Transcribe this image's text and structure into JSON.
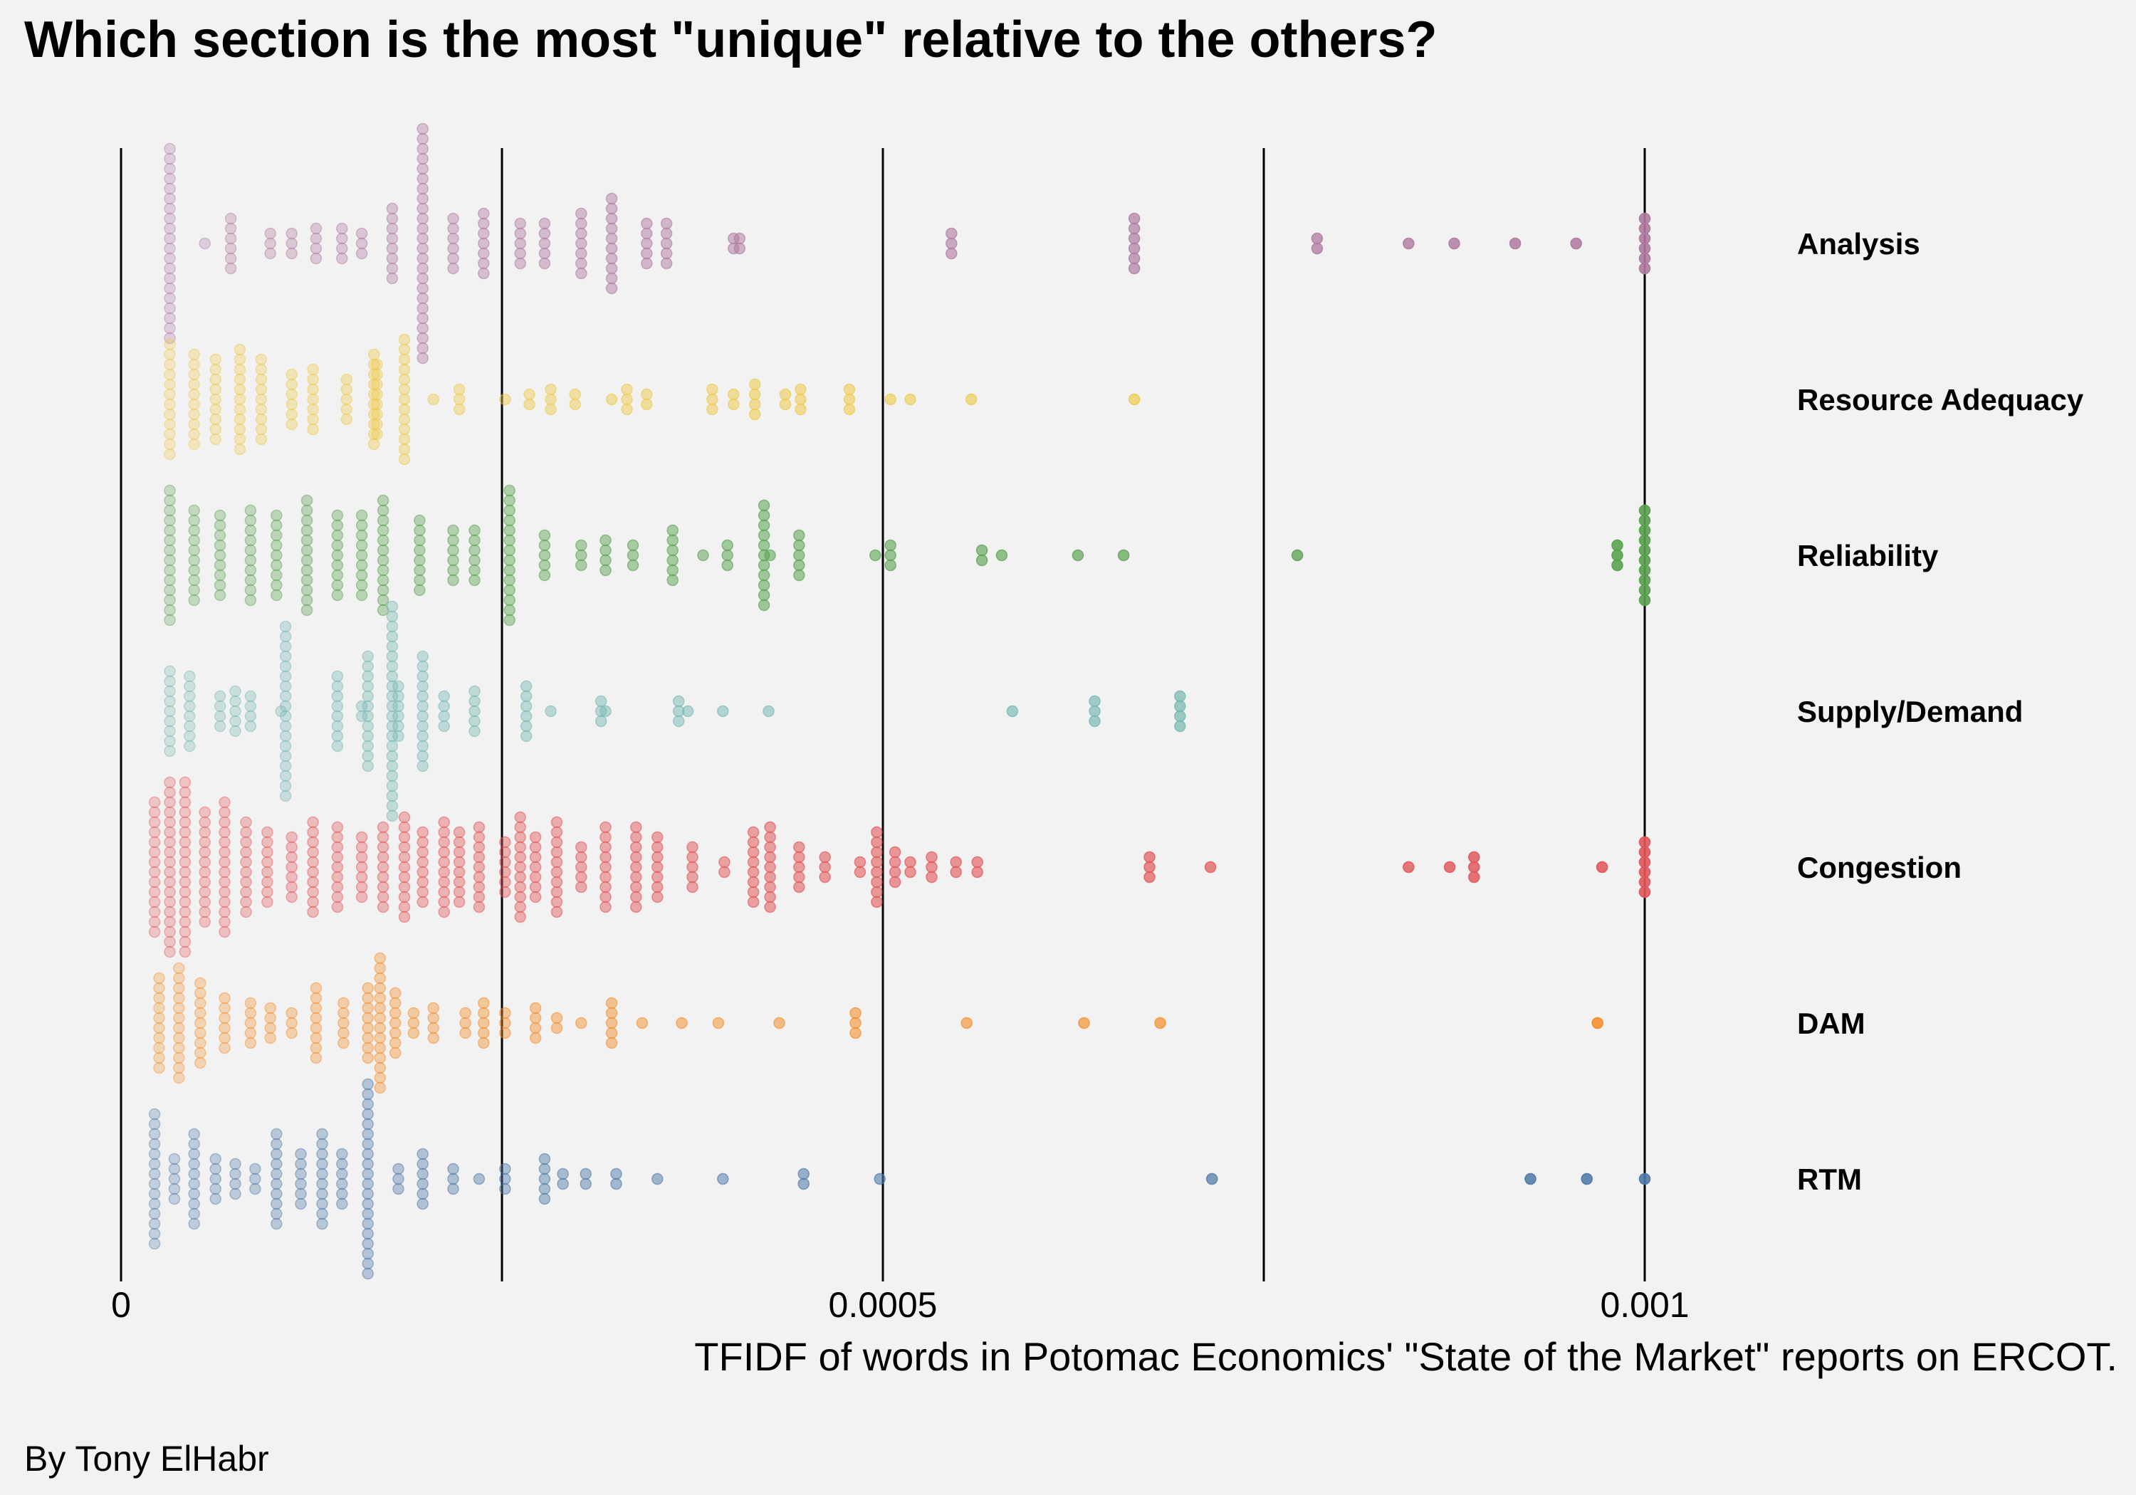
{
  "chart_data": {
    "type": "scatter",
    "title": "Which section is the most \"unique\" relative to the others?",
    "xlabel": "TFIDF of words in Potomac Economics' \"State of the Market\" reports on ERCOT.",
    "ylabel": "",
    "caption": "By Tony ElHabr",
    "xlim": [
      0,
      0.00129
    ],
    "x_ticks": [
      0,
      0.0005,
      0.001
    ],
    "x_tick_labels": [
      "0",
      "0.0005",
      "0.001"
    ],
    "grid_x": [
      0,
      0.00025,
      0.0005,
      0.00075,
      0.001
    ],
    "grid": true,
    "legend": "none",
    "series": [
      {
        "name": "Analysis",
        "color": "#b07aa1",
        "clusters": [
          [
            3.2e-05,
            20
          ],
          [
            5.5e-05,
            1
          ],
          [
            7.2e-05,
            6
          ],
          [
            9.8e-05,
            3
          ],
          [
            0.000112,
            3
          ],
          [
            0.000128,
            4
          ],
          [
            0.000145,
            4
          ],
          [
            0.000158,
            3
          ],
          [
            0.000178,
            8
          ],
          [
            0.000198,
            24
          ],
          [
            0.000218,
            6
          ],
          [
            0.000238,
            7
          ],
          [
            0.000262,
            5
          ],
          [
            0.000278,
            5
          ],
          [
            0.000302,
            7
          ],
          [
            0.000322,
            10
          ],
          [
            0.000345,
            5
          ],
          [
            0.000358,
            5
          ],
          [
            0.000402,
            2
          ],
          [
            0.000406,
            2
          ],
          [
            0.000545,
            3
          ],
          [
            0.000665,
            6
          ],
          [
            0.000785,
            2
          ],
          [
            0.000845,
            1
          ],
          [
            0.000875,
            1
          ],
          [
            0.000915,
            1
          ],
          [
            0.000955,
            1
          ],
          [
            0.001,
            6
          ]
        ]
      },
      {
        "name": "Resource Adequacy",
        "color": "#edc948",
        "clusters": [
          [
            3.2e-05,
            12
          ],
          [
            4.8e-05,
            10
          ],
          [
            6.2e-05,
            9
          ],
          [
            7.8e-05,
            11
          ],
          [
            9.2e-05,
            9
          ],
          [
            0.000112,
            6
          ],
          [
            0.000126,
            7
          ],
          [
            0.000148,
            5
          ],
          [
            0.000166,
            10
          ],
          [
            0.000168,
            8
          ],
          [
            0.000186,
            13
          ],
          [
            0.000205,
            1
          ],
          [
            0.000222,
            3
          ],
          [
            0.000252,
            1
          ],
          [
            0.000268,
            2
          ],
          [
            0.000282,
            3
          ],
          [
            0.000298,
            2
          ],
          [
            0.000322,
            1
          ],
          [
            0.000332,
            3
          ],
          [
            0.000345,
            2
          ],
          [
            0.000388,
            3
          ],
          [
            0.000402,
            2
          ],
          [
            0.000416,
            4
          ],
          [
            0.000436,
            2
          ],
          [
            0.000446,
            3
          ],
          [
            0.000478,
            3
          ],
          [
            0.000505,
            1
          ],
          [
            0.000518,
            1
          ],
          [
            0.000558,
            1
          ],
          [
            0.000665,
            1
          ]
        ]
      },
      {
        "name": "Reliability",
        "color": "#59a14f",
        "clusters": [
          [
            3.2e-05,
            14
          ],
          [
            4.8e-05,
            10
          ],
          [
            6.5e-05,
            9
          ],
          [
            8.5e-05,
            10
          ],
          [
            0.000102,
            9
          ],
          [
            0.000122,
            12
          ],
          [
            0.000142,
            9
          ],
          [
            0.000158,
            9
          ],
          [
            0.000172,
            12
          ],
          [
            0.000196,
            8
          ],
          [
            0.000218,
            6
          ],
          [
            0.000232,
            6
          ],
          [
            0.000255,
            14
          ],
          [
            0.000278,
            5
          ],
          [
            0.000302,
            3
          ],
          [
            0.000318,
            4
          ],
          [
            0.000336,
            3
          ],
          [
            0.000362,
            6
          ],
          [
            0.000382,
            1
          ],
          [
            0.000398,
            3
          ],
          [
            0.000422,
            11
          ],
          [
            0.000426,
            1
          ],
          [
            0.000445,
            5
          ],
          [
            0.000495,
            1
          ],
          [
            0.000505,
            3
          ],
          [
            0.000565,
            2
          ],
          [
            0.000578,
            1
          ],
          [
            0.000628,
            1
          ],
          [
            0.000658,
            1
          ],
          [
            0.000772,
            1
          ],
          [
            0.000982,
            3
          ],
          [
            0.001,
            10
          ]
        ]
      },
      {
        "name": "Supply/Demand",
        "color": "#76b7b2",
        "clusters": [
          [
            3.2e-05,
            9
          ],
          [
            4.5e-05,
            8
          ],
          [
            6.5e-05,
            4
          ],
          [
            7.5e-05,
            5
          ],
          [
            8.5e-05,
            4
          ],
          [
            0.000105,
            1
          ],
          [
            0.000108,
            18
          ],
          [
            0.000142,
            8
          ],
          [
            0.000158,
            2
          ],
          [
            0.000162,
            12
          ],
          [
            0.000178,
            22
          ],
          [
            0.000182,
            6
          ],
          [
            0.000198,
            12
          ],
          [
            0.000212,
            4
          ],
          [
            0.000232,
            5
          ],
          [
            0.000266,
            6
          ],
          [
            0.000282,
            1
          ],
          [
            0.000315,
            3
          ],
          [
            0.000318,
            1
          ],
          [
            0.000366,
            3
          ],
          [
            0.000372,
            1
          ],
          [
            0.000395,
            1
          ],
          [
            0.000425,
            1
          ],
          [
            0.000585,
            1
          ],
          [
            0.000639,
            3
          ],
          [
            0.000695,
            4
          ]
        ]
      },
      {
        "name": "Congestion",
        "color": "#e15759",
        "clusters": [
          [
            2.2e-05,
            14
          ],
          [
            3.2e-05,
            18
          ],
          [
            4.2e-05,
            18
          ],
          [
            5.5e-05,
            12
          ],
          [
            6.8e-05,
            14
          ],
          [
            8.2e-05,
            10
          ],
          [
            9.6e-05,
            8
          ],
          [
            0.000112,
            7
          ],
          [
            0.000126,
            10
          ],
          [
            0.000142,
            9
          ],
          [
            0.000158,
            7
          ],
          [
            0.000172,
            9
          ],
          [
            0.000186,
            11
          ],
          [
            0.000198,
            8
          ],
          [
            0.000212,
            10
          ],
          [
            0.000222,
            8
          ],
          [
            0.000235,
            9
          ],
          [
            0.000252,
            6
          ],
          [
            0.000262,
            11
          ],
          [
            0.000272,
            7
          ],
          [
            0.000286,
            10
          ],
          [
            0.000302,
            5
          ],
          [
            0.000318,
            9
          ],
          [
            0.000338,
            9
          ],
          [
            0.000352,
            7
          ],
          [
            0.000375,
            5
          ],
          [
            0.000396,
            2
          ],
          [
            0.000415,
            8
          ],
          [
            0.000426,
            9
          ],
          [
            0.000445,
            5
          ],
          [
            0.000462,
            3
          ],
          [
            0.000485,
            2
          ],
          [
            0.000496,
            8
          ],
          [
            0.000508,
            4
          ],
          [
            0.000518,
            2
          ],
          [
            0.000532,
            3
          ],
          [
            0.000548,
            2
          ],
          [
            0.000562,
            2
          ],
          [
            0.000675,
            3
          ],
          [
            0.000715,
            1
          ],
          [
            0.000845,
            1
          ],
          [
            0.000872,
            1
          ],
          [
            0.000888,
            3
          ],
          [
            0.000972,
            1
          ],
          [
            0.001,
            6
          ]
        ]
      },
      {
        "name": "DAM",
        "color": "#f28e2b",
        "clusters": [
          [
            2.5e-05,
            10
          ],
          [
            3.8e-05,
            12
          ],
          [
            5.2e-05,
            9
          ],
          [
            6.8e-05,
            6
          ],
          [
            8.5e-05,
            5
          ],
          [
            9.8e-05,
            4
          ],
          [
            0.000112,
            3
          ],
          [
            0.000128,
            8
          ],
          [
            0.000146,
            5
          ],
          [
            0.000162,
            8
          ],
          [
            0.00017,
            14
          ],
          [
            0.00018,
            7
          ],
          [
            0.000192,
            3
          ],
          [
            0.000205,
            4
          ],
          [
            0.000226,
            3
          ],
          [
            0.000238,
            5
          ],
          [
            0.000252,
            3
          ],
          [
            0.000272,
            4
          ],
          [
            0.000286,
            2
          ],
          [
            0.000302,
            1
          ],
          [
            0.000322,
            5
          ],
          [
            0.000342,
            1
          ],
          [
            0.000368,
            1
          ],
          [
            0.000392,
            1
          ],
          [
            0.000432,
            1
          ],
          [
            0.000482,
            3
          ],
          [
            0.000555,
            1
          ],
          [
            0.000632,
            1
          ],
          [
            0.000682,
            1
          ],
          [
            0.000969,
            1
          ]
        ]
      },
      {
        "name": "RTM",
        "color": "#4e79a7",
        "clusters": [
          [
            2.2e-05,
            14
          ],
          [
            3.5e-05,
            5
          ],
          [
            4.8e-05,
            10
          ],
          [
            6.2e-05,
            5
          ],
          [
            7.5e-05,
            4
          ],
          [
            8.8e-05,
            3
          ],
          [
            0.000102,
            10
          ],
          [
            0.000118,
            6
          ],
          [
            0.000132,
            10
          ],
          [
            0.000145,
            6
          ],
          [
            0.000162,
            20
          ],
          [
            0.000182,
            3
          ],
          [
            0.000198,
            6
          ],
          [
            0.000218,
            3
          ],
          [
            0.000235,
            1
          ],
          [
            0.000252,
            3
          ],
          [
            0.000278,
            5
          ],
          [
            0.00029,
            2
          ],
          [
            0.000305,
            2
          ],
          [
            0.000325,
            2
          ],
          [
            0.000352,
            1
          ],
          [
            0.000395,
            1
          ],
          [
            0.000448,
            2
          ],
          [
            0.000498,
            1
          ],
          [
            0.000716,
            1
          ],
          [
            0.000925,
            1
          ],
          [
            0.000962,
            1
          ],
          [
            0.001,
            1
          ]
        ]
      }
    ]
  }
}
